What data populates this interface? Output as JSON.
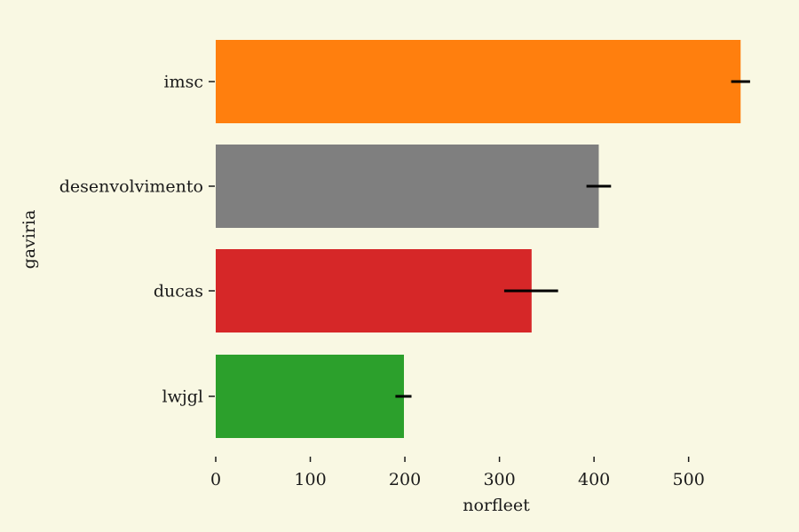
{
  "chart_data": {
    "type": "bar",
    "orientation": "horizontal",
    "categories": [
      "imsc",
      "desenvolvimento",
      "ducas",
      "lwjgl"
    ],
    "values": [
      555,
      405,
      334,
      199
    ],
    "error_low": [
      545,
      392,
      305,
      190
    ],
    "error_high": [
      565,
      418,
      362,
      207
    ],
    "colors": [
      "#ff7f0e",
      "#7f7f7f",
      "#d62728",
      "#2ca02c"
    ],
    "error_color": "#000000",
    "xlabel": "norfleet",
    "ylabel": "gaviria",
    "xlim": [
      0,
      580
    ],
    "xticks": [
      0,
      100,
      200,
      300,
      400,
      500
    ],
    "grid": false,
    "legend": "none"
  }
}
